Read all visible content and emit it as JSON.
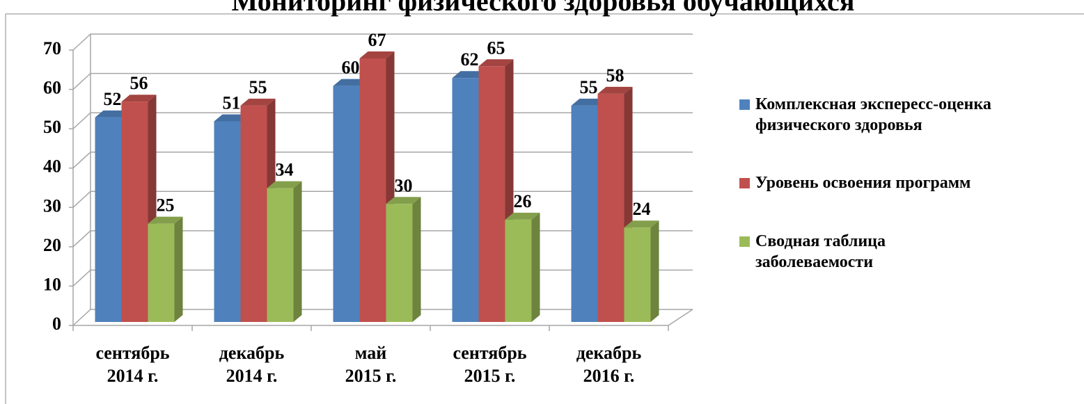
{
  "chart_data": {
    "type": "bar3d",
    "title": "Мониторинг физического здоровья обучающихся",
    "categories": [
      "сентябрь\n2014 г.",
      "декабрь\n2014 г.",
      "май\n2015 г.",
      "сентябрь\n2015 г.",
      "декабрь\n2016 г."
    ],
    "series": [
      {
        "name": "Комплексная экспересс-оценка\nфизического здоровья",
        "color": "#4f81bd",
        "values": [
          52,
          51,
          60,
          62,
          55
        ]
      },
      {
        "name": "Уровень освоения программ",
        "color": "#c0504d",
        "values": [
          56,
          55,
          67,
          65,
          58
        ]
      },
      {
        "name": "Сводная таблица\nзаболеваемости",
        "color": "#9bbb59",
        "values": [
          25,
          34,
          30,
          26,
          24
        ]
      }
    ],
    "ylim": [
      0,
      70
    ],
    "yticks": [
      0,
      10,
      20,
      30,
      40,
      50,
      60,
      70
    ],
    "grid": true,
    "legend": "right"
  }
}
